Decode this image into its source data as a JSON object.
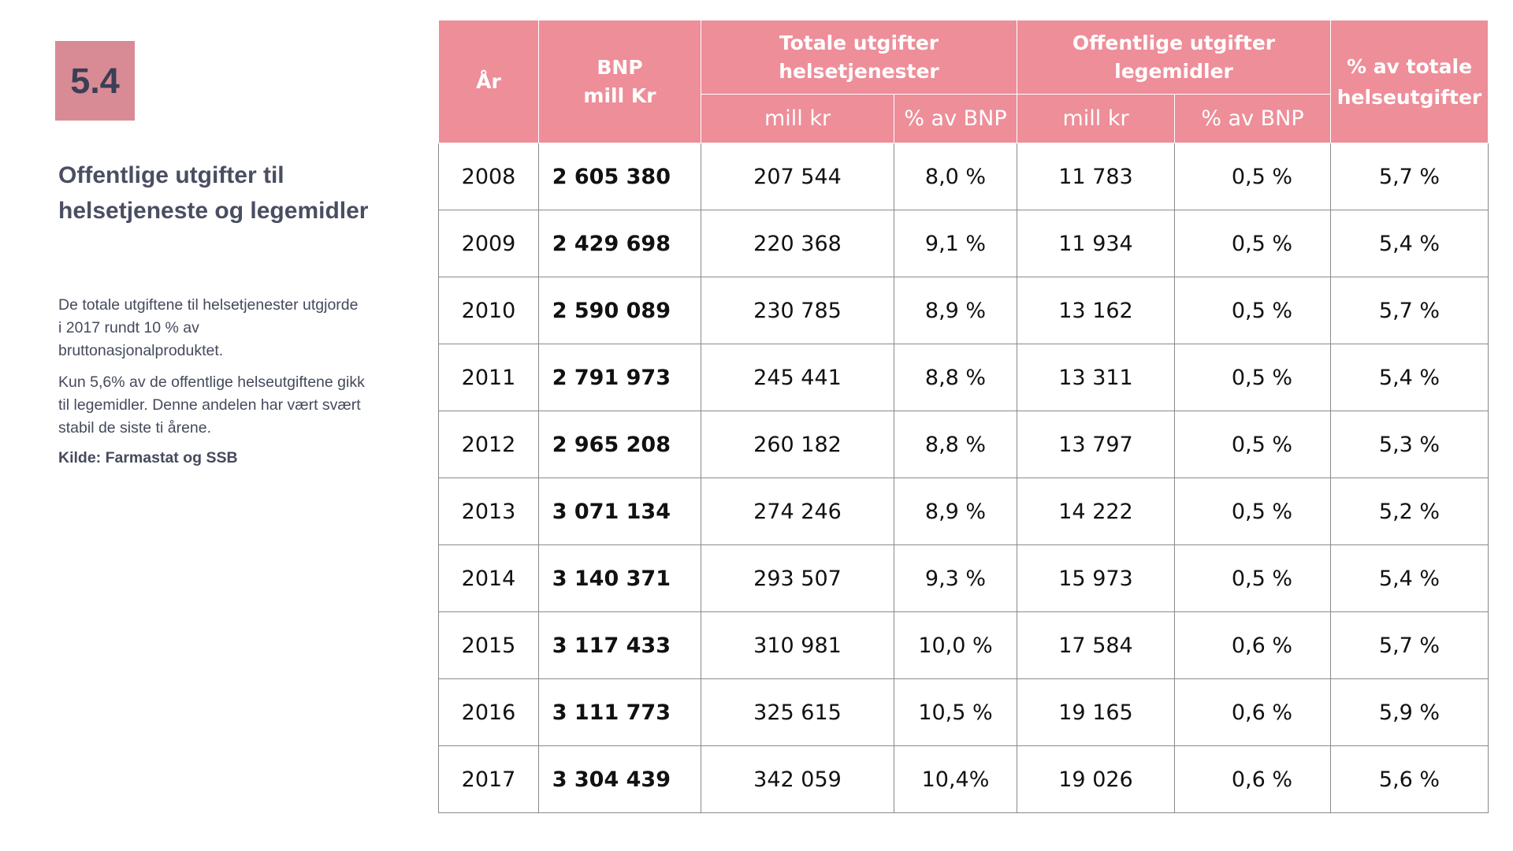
{
  "badge": "5.4",
  "title": "Offentlige utgifter til helsetjeneste og legemidler",
  "paragraphs": [
    "De totale utgiftene til helsetjenester utgjorde i 2017 rundt 10 % av bruttonasjonalproduktet.",
    "Kun 5,6% av de offentlige helseutgiftene gikk til legemidler. Denne andelen har vært svært stabil de siste ti årene."
  ],
  "source": "Kilde: Farmastat og SSB",
  "table": {
    "headers": {
      "year": "År",
      "bnp": "BNP mill Kr",
      "total": "Totale utgifter helsetjenester",
      "public": "Offentlige utgifter legemidler",
      "share": "% av totale helseutgifter",
      "mill_kr": "mill kr",
      "pct_bnp": "% av BNP"
    },
    "rows": [
      {
        "year": "2008",
        "bnp": "2 605 380",
        "total_mill": "207 544",
        "total_pct": "8,0 %",
        "pub_mill": "11 783",
        "pub_pct": "0,5 %",
        "share": "5,7 %"
      },
      {
        "year": "2009",
        "bnp": "2 429 698",
        "total_mill": "220 368",
        "total_pct": "9,1 %",
        "pub_mill": "11 934",
        "pub_pct": "0,5 %",
        "share": "5,4 %"
      },
      {
        "year": "2010",
        "bnp": "2 590 089",
        "total_mill": "230 785",
        "total_pct": "8,9 %",
        "pub_mill": "13 162",
        "pub_pct": "0,5 %",
        "share": "5,7 %"
      },
      {
        "year": "2011",
        "bnp": "2 791 973",
        "total_mill": "245 441",
        "total_pct": "8,8 %",
        "pub_mill": "13 311",
        "pub_pct": "0,5 %",
        "share": "5,4 %"
      },
      {
        "year": "2012",
        "bnp": "2 965 208",
        "total_mill": "260 182",
        "total_pct": "8,8 %",
        "pub_mill": "13 797",
        "pub_pct": "0,5 %",
        "share": "5,3 %"
      },
      {
        "year": "2013",
        "bnp": "3 071 134",
        "total_mill": "274 246",
        "total_pct": "8,9 %",
        "pub_mill": "14 222",
        "pub_pct": "0,5 %",
        "share": "5,2 %"
      },
      {
        "year": "2014",
        "bnp": "3 140 371",
        "total_mill": "293 507",
        "total_pct": "9,3 %",
        "pub_mill": "15 973",
        "pub_pct": "0,5 %",
        "share": "5,4 %"
      },
      {
        "year": "2015",
        "bnp": "3 117 433",
        "total_mill": "310 981",
        "total_pct": "10,0 %",
        "pub_mill": "17 584",
        "pub_pct": "0,6 %",
        "share": "5,7 %"
      },
      {
        "year": "2016",
        "bnp": "3 111 773",
        "total_mill": "325 615",
        "total_pct": "10,5 %",
        "pub_mill": "19 165",
        "pub_pct": "0,6 %",
        "share": "5,9 %"
      },
      {
        "year": "2017",
        "bnp": "3 304 439",
        "total_mill": "342 059",
        "total_pct": "10,4%",
        "pub_mill": "19 026",
        "pub_pct": "0,6 %",
        "share": "5,6 %"
      }
    ]
  },
  "colors": {
    "header_bg": "#ed8e99",
    "badge_bg": "#d98b95",
    "text_dark": "#4a4e62",
    "border": "#8a8a8a"
  }
}
